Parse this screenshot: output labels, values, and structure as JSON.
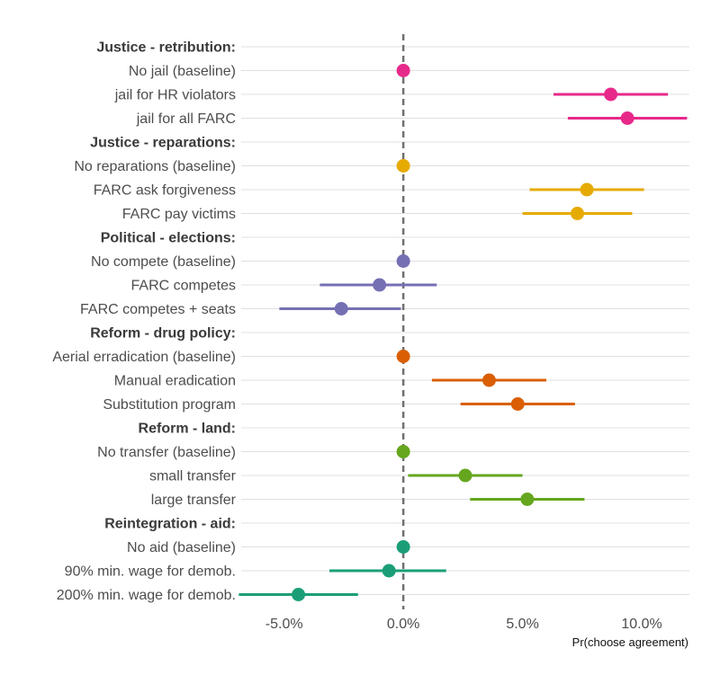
{
  "chart_data": {
    "type": "scatter",
    "subtype": "coefficient-plot-with-error-bars",
    "xlabel": "Pr(choose agreement)",
    "x_ticks": [
      -0.05,
      0.0,
      0.05,
      0.1
    ],
    "x_tick_labels": [
      "-5.0%",
      "0.0%",
      "5.0%",
      "10.0%"
    ],
    "xlim": [
      -0.068,
      0.12
    ],
    "reference_line": {
      "x": 0.0,
      "style": "dashed"
    },
    "grid": "horizontal",
    "rows": [
      {
        "label": "Justice - retribution:",
        "header": true
      },
      {
        "label": "No jail (baseline)",
        "group": "Justice - retribution",
        "estimate": 0.0,
        "low": null,
        "high": null,
        "color": "#E7298A"
      },
      {
        "label": "jail for HR violators",
        "group": "Justice - retribution",
        "estimate": 0.087,
        "low": 0.063,
        "high": 0.111,
        "color": "#E7298A"
      },
      {
        "label": "jail for all FARC",
        "group": "Justice - retribution",
        "estimate": 0.094,
        "low": 0.069,
        "high": 0.119,
        "color": "#E7298A"
      },
      {
        "label": "Justice - reparations:",
        "header": true
      },
      {
        "label": "No reparations (baseline)",
        "group": "Justice - reparations",
        "estimate": 0.0,
        "low": null,
        "high": null,
        "color": "#E6AB02"
      },
      {
        "label": "FARC ask forgiveness",
        "group": "Justice - reparations",
        "estimate": 0.077,
        "low": 0.053,
        "high": 0.101,
        "color": "#E6AB02"
      },
      {
        "label": "FARC pay victims",
        "group": "Justice - reparations",
        "estimate": 0.073,
        "low": 0.05,
        "high": 0.096,
        "color": "#E6AB02"
      },
      {
        "label": "Political - elections:",
        "header": true
      },
      {
        "label": "No compete (baseline)",
        "group": "Political - elections",
        "estimate": 0.0,
        "low": null,
        "high": null,
        "color": "#7570B3"
      },
      {
        "label": "FARC competes",
        "group": "Political - elections",
        "estimate": -0.01,
        "low": -0.035,
        "high": 0.014,
        "color": "#7570B3"
      },
      {
        "label": "FARC competes + seats",
        "group": "Political - elections",
        "estimate": -0.026,
        "low": -0.052,
        "high": -0.001,
        "color": "#7570B3"
      },
      {
        "label": "Reform - drug policy:",
        "header": true
      },
      {
        "label": "Aerial erradication (baseline)",
        "group": "Reform - drug policy",
        "estimate": 0.0,
        "low": null,
        "high": null,
        "color": "#D95F02"
      },
      {
        "label": "Manual eradication",
        "group": "Reform - drug policy",
        "estimate": 0.036,
        "low": 0.012,
        "high": 0.06,
        "color": "#D95F02"
      },
      {
        "label": "Substitution program",
        "group": "Reform - drug policy",
        "estimate": 0.048,
        "low": 0.024,
        "high": 0.072,
        "color": "#D95F02"
      },
      {
        "label": "Reform - land:",
        "header": true
      },
      {
        "label": "No transfer (baseline)",
        "group": "Reform - land",
        "estimate": 0.0,
        "low": null,
        "high": null,
        "color": "#66A61E"
      },
      {
        "label": "small transfer",
        "group": "Reform - land",
        "estimate": 0.026,
        "low": 0.002,
        "high": 0.05,
        "color": "#66A61E"
      },
      {
        "label": "large transfer",
        "group": "Reform - land",
        "estimate": 0.052,
        "low": 0.028,
        "high": 0.076,
        "color": "#66A61E"
      },
      {
        "label": "Reintegration - aid:",
        "header": true
      },
      {
        "label": "No aid (baseline)",
        "group": "Reintegration - aid",
        "estimate": 0.0,
        "low": null,
        "high": null,
        "color": "#1B9E77"
      },
      {
        "label": "90% min. wage for demob.",
        "group": "Reintegration - aid",
        "estimate": -0.006,
        "low": -0.031,
        "high": 0.018,
        "color": "#1B9E77"
      },
      {
        "label": "200% min. wage for demob.",
        "group": "Reintegration - aid",
        "estimate": -0.044,
        "low": -0.069,
        "high": -0.019,
        "color": "#1B9E77"
      }
    ]
  },
  "style": {
    "grid_color": "#e0e0e0",
    "ref_line_color": "#707070",
    "background": "#ffffff"
  }
}
